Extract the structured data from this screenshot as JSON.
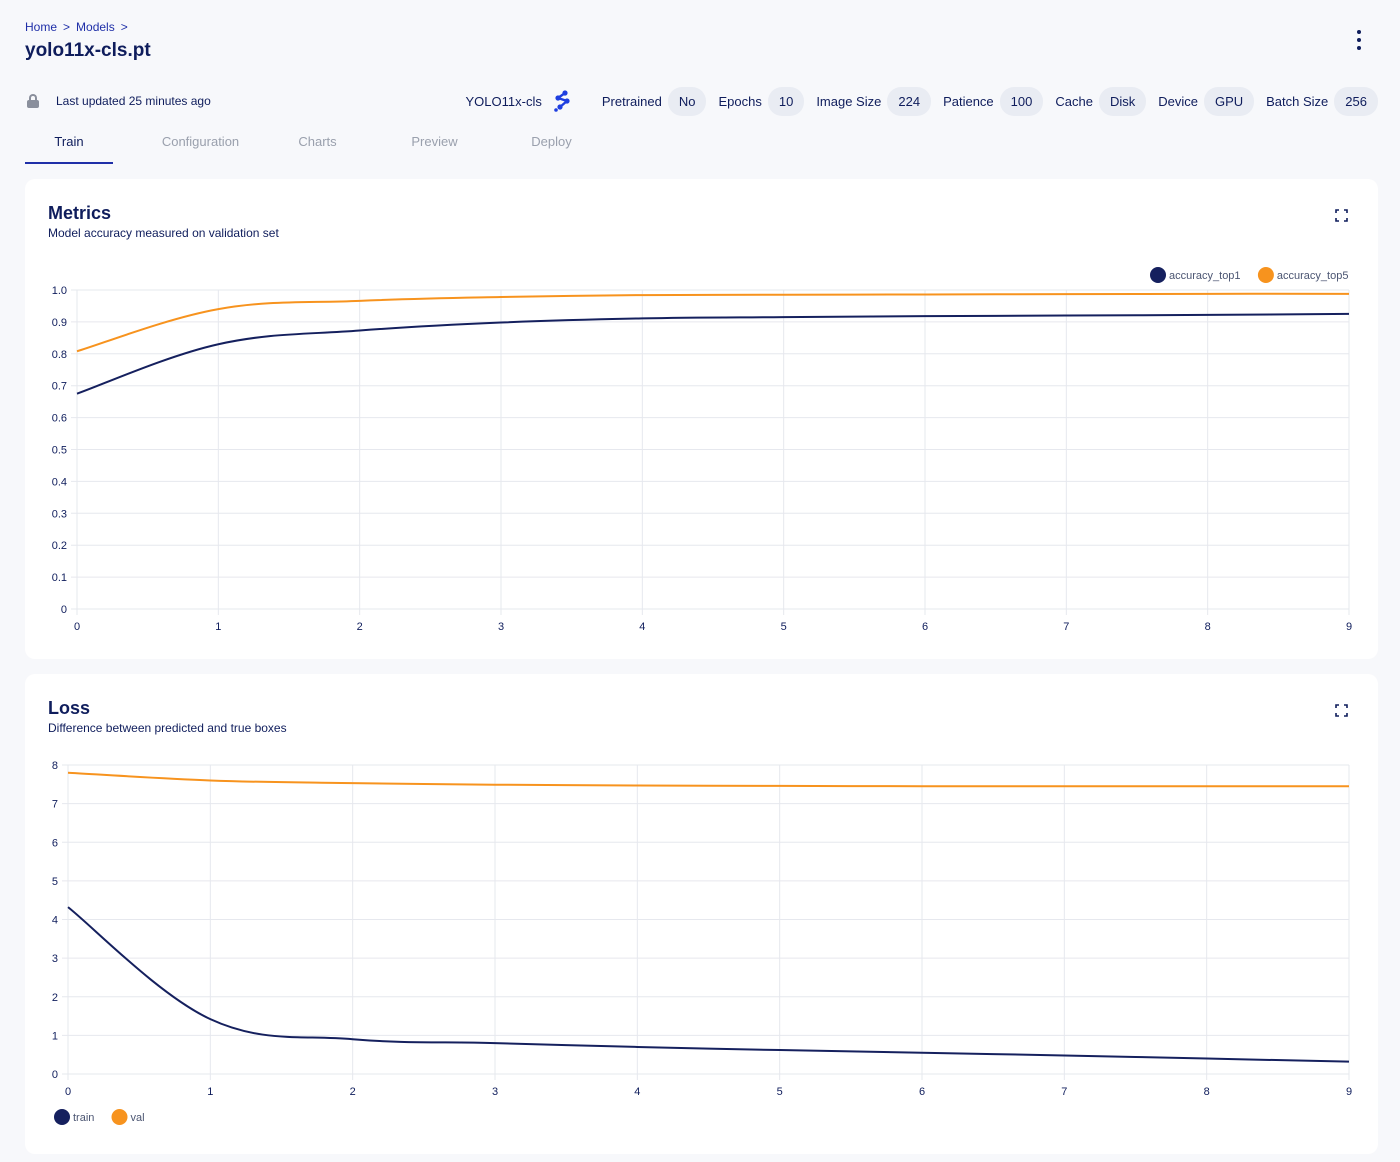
{
  "breadcrumb": {
    "home": "Home",
    "models": "Models",
    "sep": ">"
  },
  "page_title": "yolo11x-cls.pt",
  "info": {
    "last_updated": "Last updated 25 minutes ago",
    "model_name": "YOLO11x-cls",
    "params": [
      {
        "label": "Pretrained",
        "value": "No"
      },
      {
        "label": "Epochs",
        "value": "10"
      },
      {
        "label": "Image Size",
        "value": "224"
      },
      {
        "label": "Patience",
        "value": "100"
      },
      {
        "label": "Cache",
        "value": "Disk"
      },
      {
        "label": "Device",
        "value": "GPU"
      },
      {
        "label": "Batch Size",
        "value": "256"
      }
    ]
  },
  "tabs": [
    {
      "label": "Train",
      "active": true
    },
    {
      "label": "Configuration",
      "active": false
    },
    {
      "label": "Charts",
      "active": false
    },
    {
      "label": "Preview",
      "active": false
    },
    {
      "label": "Deploy",
      "active": false
    }
  ],
  "colors": {
    "series_dark": "#15205e",
    "series_orange": "#f7931e",
    "accent": "#1f2fa8"
  },
  "metrics_card": {
    "title": "Metrics",
    "subtitle": "Model accuracy measured on validation set"
  },
  "loss_card": {
    "title": "Loss",
    "subtitle": "Difference between predicted and true boxes"
  },
  "chart_data": [
    {
      "type": "line",
      "title": "Metrics",
      "x": [
        0,
        1,
        2,
        3,
        4,
        5,
        6,
        7,
        8,
        9
      ],
      "ylim": [
        0,
        1
      ],
      "yticks": [
        "0",
        "0.1",
        "0.2",
        "0.3",
        "0.4",
        "0.5",
        "0.6",
        "0.7",
        "0.8",
        "0.9",
        "1.0"
      ],
      "xticks": [
        "0",
        "1",
        "2",
        "3",
        "4",
        "5",
        "6",
        "7",
        "8",
        "9"
      ],
      "legend_position": "top-right",
      "grid": true,
      "series": [
        {
          "name": "accuracy_top1",
          "color": "#15205e",
          "values": [
            0.675,
            0.83,
            0.873,
            0.898,
            0.911,
            0.915,
            0.918,
            0.92,
            0.922,
            0.925
          ]
        },
        {
          "name": "accuracy_top5",
          "color": "#f7931e",
          "values": [
            0.808,
            0.94,
            0.966,
            0.978,
            0.984,
            0.985,
            0.986,
            0.987,
            0.988,
            0.988
          ]
        }
      ]
    },
    {
      "type": "line",
      "title": "Loss",
      "x": [
        0,
        1,
        2,
        3,
        4,
        5,
        6,
        7,
        8,
        9
      ],
      "ylim": [
        0,
        8
      ],
      "yticks": [
        "0",
        "1",
        "2",
        "3",
        "4",
        "5",
        "6",
        "7",
        "8"
      ],
      "xticks": [
        "0",
        "1",
        "2",
        "3",
        "4",
        "5",
        "6",
        "7",
        "8",
        "9"
      ],
      "legend_position": "bottom-left",
      "grid": true,
      "series": [
        {
          "name": "train",
          "color": "#15205e",
          "values": [
            4.32,
            1.42,
            0.9,
            0.8,
            0.7,
            0.62,
            0.55,
            0.48,
            0.4,
            0.32
          ]
        },
        {
          "name": "val",
          "color": "#f7931e",
          "values": [
            7.8,
            7.6,
            7.53,
            7.49,
            7.47,
            7.46,
            7.45,
            7.45,
            7.45,
            7.45
          ]
        }
      ]
    }
  ]
}
